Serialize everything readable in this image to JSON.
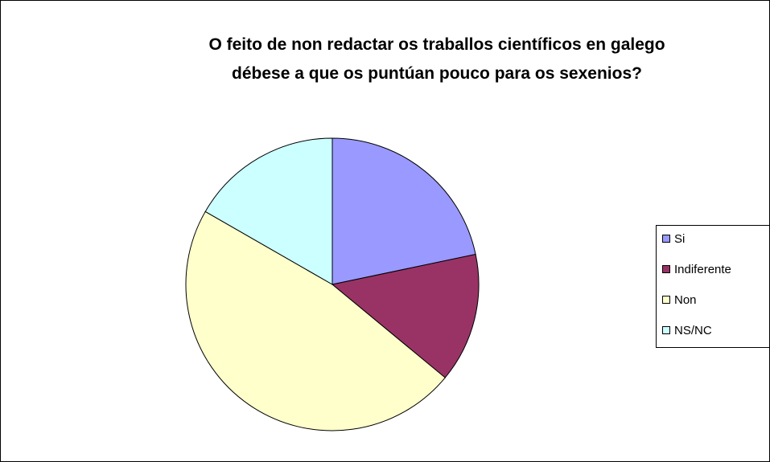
{
  "chart_data": {
    "type": "pie",
    "title": "O feito de non redactar os traballos científicos en galego\ndébese a que os puntúan pouco para os sexenios?",
    "categories": [
      "Si",
      "Indiferente",
      "Non",
      "NS/NC"
    ],
    "values": [
      21.7,
      14.3,
      47.3,
      16.7
    ],
    "colors": [
      "#9999ff",
      "#993366",
      "#ffffcc",
      "#ccffff"
    ],
    "legend": "right"
  }
}
